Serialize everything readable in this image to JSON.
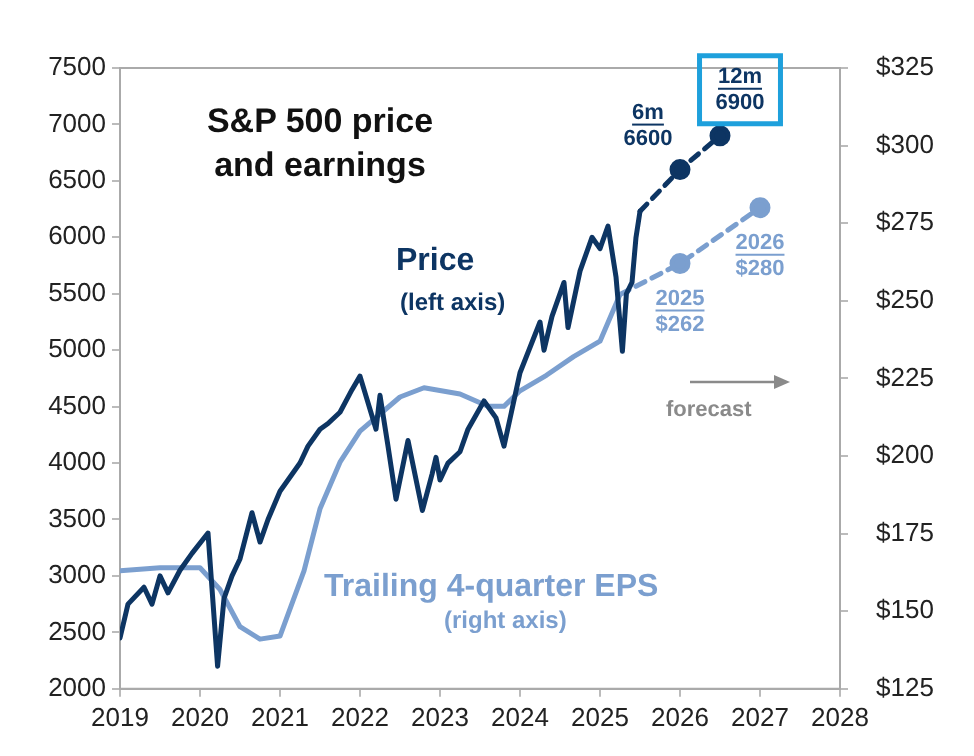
{
  "chart_data": {
    "type": "line",
    "title": "S&P 500 price and earnings",
    "xlim": [
      2019,
      2028
    ],
    "xticks": [
      2019,
      2020,
      2021,
      2022,
      2023,
      2024,
      2025,
      2026,
      2027,
      2028
    ],
    "ylim": [
      2000,
      7500
    ],
    "yticks": [
      2000,
      2500,
      3000,
      3500,
      4000,
      4500,
      5000,
      5500,
      6000,
      6500,
      7000,
      7500
    ],
    "y2lim": [
      125,
      325
    ],
    "y2ticks": [
      {
        "value": 125,
        "label": "$125"
      },
      {
        "value": 150,
        "label": "$150"
      },
      {
        "value": 175,
        "label": "$175"
      },
      {
        "value": 200,
        "label": "$200"
      },
      {
        "value": 225,
        "label": "$225"
      },
      {
        "value": 250,
        "label": "$250"
      },
      {
        "value": 275,
        "label": "$275"
      },
      {
        "value": 300,
        "label": "$300"
      },
      {
        "value": 325,
        "label": "$325"
      }
    ],
    "grid": false,
    "legend": false,
    "marker": "none",
    "line_style": "solid",
    "series": [
      {
        "name": "Price",
        "color": "#0d3563",
        "x": [
          2019.0,
          2019.1,
          2019.3,
          2019.4,
          2019.5,
          2019.6,
          2019.75,
          2019.9,
          2020.1,
          2020.22,
          2020.3,
          2020.4,
          2020.5,
          2020.65,
          2020.75,
          2020.85,
          2021.0,
          2021.25,
          2021.35,
          2021.5,
          2021.6,
          2021.75,
          2021.9,
          2022.0,
          2022.2,
          2022.25,
          2022.35,
          2022.45,
          2022.6,
          2022.78,
          2022.9,
          2022.95,
          2023.0,
          2023.1,
          2023.25,
          2023.35,
          2023.55,
          2023.7,
          2023.8,
          2024.0,
          2024.25,
          2024.3,
          2024.4,
          2024.55,
          2024.6,
          2024.75,
          2024.9,
          2025.0,
          2025.1,
          2025.2,
          2025.28,
          2025.33,
          2025.4,
          2025.45,
          2025.5
        ],
        "values": [
          2450,
          2750,
          2900,
          2750,
          3000,
          2850,
          3050,
          3200,
          3380,
          2200,
          2800,
          3000,
          3150,
          3560,
          3300,
          3500,
          3750,
          4000,
          4150,
          4300,
          4350,
          4450,
          4650,
          4770,
          4300,
          4600,
          4150,
          3680,
          4200,
          3580,
          3900,
          4050,
          3850,
          4000,
          4100,
          4300,
          4550,
          4400,
          4150,
          4800,
          5250,
          5000,
          5300,
          5600,
          5200,
          5700,
          6000,
          5900,
          6100,
          5650,
          4990,
          5500,
          5600,
          6000,
          6230
        ]
      },
      {
        "color": "#0d3563",
        "x": [
          2025.5,
          2026.0,
          2026.5
        ],
        "values": [
          6230,
          6600,
          6900
        ],
        "line_style": "dashed",
        "marker": "circle",
        "value_labels": [
          null,
          "6m\n6600",
          "12m\n6900"
        ]
      },
      {
        "name": "Trailing 4-quarter EPS",
        "color": "#7b9fcf",
        "axis": "y2",
        "x": [
          2019.0,
          2019.5,
          2020.0,
          2020.25,
          2020.5,
          2020.75,
          2021.0,
          2021.3,
          2021.5,
          2021.75,
          2022.0,
          2022.5,
          2022.8,
          2023.25,
          2023.6,
          2023.8,
          2024.0,
          2024.33,
          2024.67,
          2025.0,
          2025.25
        ],
        "values": [
          163,
          164,
          164,
          157,
          145,
          141,
          142,
          163,
          183,
          198,
          208,
          219,
          222,
          220,
          216,
          216,
          221,
          226,
          232,
          237,
          252
        ]
      },
      {
        "color": "#7b9fcf",
        "axis": "y2",
        "x": [
          2025.25,
          2026.0,
          2027.0
        ],
        "values": [
          252,
          262,
          280
        ],
        "line_style": "dashed",
        "marker": "circle",
        "value_labels": [
          null,
          "2025\n$262",
          "2026\n$280"
        ]
      }
    ],
    "annotations": [
      "(left axis)",
      "(right axis)",
      "forecast"
    ]
  }
}
